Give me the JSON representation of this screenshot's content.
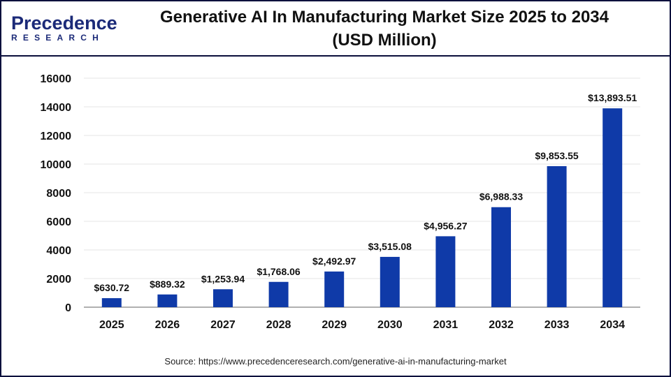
{
  "logo": {
    "line1": "Precedence",
    "line2": "RESEARCH"
  },
  "title_line1": "Generative AI In Manufacturing Market Size 2025 to 2034",
  "title_line2": "(USD Million)",
  "source": "Source: https://www.precedenceresearch.com/generative-ai-in-manufacturing-market",
  "colors": {
    "bar": "#0f3aa8",
    "frame": "#0a0f3c",
    "grid": "#e6e6e6",
    "axis": "#b0b0b0"
  },
  "chart_data": {
    "type": "bar",
    "title": "Generative AI In Manufacturing Market Size 2025 to 2034 (USD Million)",
    "xlabel": "",
    "ylabel": "",
    "categories": [
      "2025",
      "2026",
      "2027",
      "2028",
      "2029",
      "2030",
      "2031",
      "2032",
      "2033",
      "2034"
    ],
    "values": [
      630.72,
      889.32,
      1253.94,
      1768.06,
      2492.97,
      3515.08,
      4956.27,
      6988.33,
      9853.55,
      13893.51
    ],
    "data_labels": [
      "$630.72",
      "$889.32",
      "$1,253.94",
      "$1,768.06",
      "$2,492.97",
      "$3,515.08",
      "$4,956.27",
      "$6,988.33",
      "$9,853.55",
      "$13,893.51"
    ],
    "ylim": [
      0,
      16000
    ],
    "yticks": [
      "0",
      "2000",
      "4000",
      "6000",
      "8000",
      "10000",
      "12000",
      "14000",
      "16000"
    ],
    "grid": true,
    "legend": "none"
  }
}
